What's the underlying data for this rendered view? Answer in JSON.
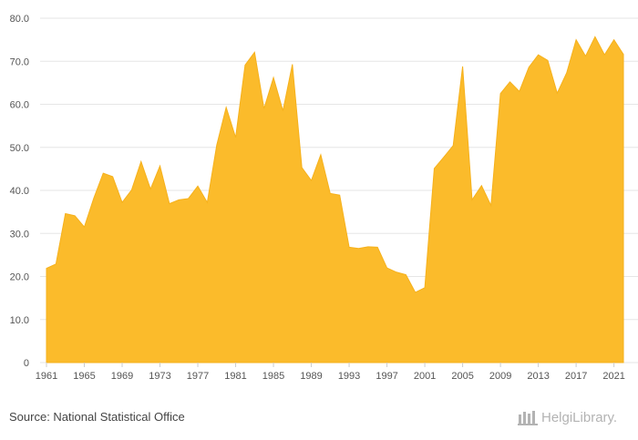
{
  "chart_data": {
    "type": "area",
    "color": "#fbbb2b",
    "x": [
      1961,
      1962,
      1963,
      1964,
      1965,
      1966,
      1967,
      1968,
      1969,
      1970,
      1971,
      1972,
      1973,
      1974,
      1975,
      1976,
      1977,
      1978,
      1979,
      1980,
      1981,
      1982,
      1983,
      1984,
      1985,
      1986,
      1987,
      1988,
      1989,
      1990,
      1991,
      1992,
      1993,
      1994,
      1995,
      1996,
      1997,
      1998,
      1999,
      2000,
      2001,
      2002,
      2003,
      2004,
      2005,
      2006,
      2007,
      2008,
      2009,
      2010,
      2011,
      2012,
      2013,
      2014,
      2015,
      2016,
      2017,
      2018,
      2019,
      2020,
      2021,
      2022
    ],
    "values": [
      21.9,
      22.9,
      34.6,
      34.1,
      31.5,
      38.2,
      44.0,
      43.2,
      37.2,
      40.1,
      46.7,
      40.3,
      45.7,
      36.9,
      37.8,
      38.1,
      41.0,
      37.2,
      50.5,
      59.3,
      52.3,
      69.1,
      72.1,
      59.0,
      66.2,
      58.5,
      69.3,
      45.3,
      42.3,
      48.3,
      39.3,
      38.9,
      26.8,
      26.5,
      26.9,
      26.8,
      22.0,
      21.0,
      20.4,
      16.3,
      17.4,
      45.1,
      47.7,
      50.4,
      68.8,
      37.8,
      41.1,
      36.5,
      62.5,
      65.2,
      63.0,
      68.6,
      71.5,
      70.2,
      62.6,
      67.3,
      75.0,
      71.2,
      75.7,
      71.5,
      75.0,
      71.6
    ],
    "xticks": [
      "1961",
      "1965",
      "1969",
      "1973",
      "1977",
      "1981",
      "1985",
      "1989",
      "1993",
      "1997",
      "2001",
      "2005",
      "2009",
      "2013",
      "2017",
      "2021"
    ],
    "yticks": [
      "0",
      "10.0",
      "20.0",
      "30.0",
      "40.0",
      "50.0",
      "60.0",
      "70.0",
      "80.0"
    ],
    "ylim": [
      0,
      80
    ],
    "grid": true,
    "title": "",
    "xlabel": "",
    "ylabel": ""
  },
  "footer": {
    "source": "Source: National Statistical Office",
    "logo_text": "HelgiLibrary."
  }
}
